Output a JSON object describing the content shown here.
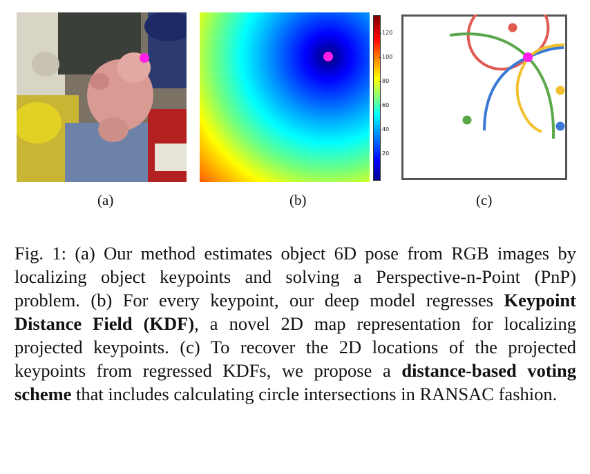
{
  "figure": {
    "panels": [
      {
        "id": "a",
        "label": "(a)",
        "image": "rgb-scene-with-plush-toy"
      },
      {
        "id": "b",
        "label": "(b)",
        "image": "keypoint-distance-field-heatmap"
      },
      {
        "id": "c",
        "label": "(c)",
        "image": "circle-intersection-voting-diagram"
      }
    ],
    "colorbar": {
      "ticks": [
        "120",
        "100",
        "80",
        "60",
        "40",
        "20"
      ],
      "max_tick": "",
      "colormap": "jet"
    },
    "keypoint_color": "#ff1fe8",
    "circle_colors": [
      "#e05a52",
      "#5aa84a",
      "#3a78d6",
      "#f2c02e"
    ]
  },
  "caption": {
    "prefix": "Fig. 1: (a) Our method estimates object 6D pose from RGB images by localizing object keypoints and solving a Perspective-n-Point (PnP) problem. (b) For every keypoint, our deep model regresses ",
    "bold1": "Keypoint Distance Field (KDF)",
    "mid": ", a novel 2D map representation for localizing projected keypoints. (c) To recover the 2D locations of the projected keypoints from regressed KDFs, we propose a ",
    "bold2": "distance-based voting scheme",
    "suffix": " that includes calculating circle intersections in RANSAC fashion."
  }
}
